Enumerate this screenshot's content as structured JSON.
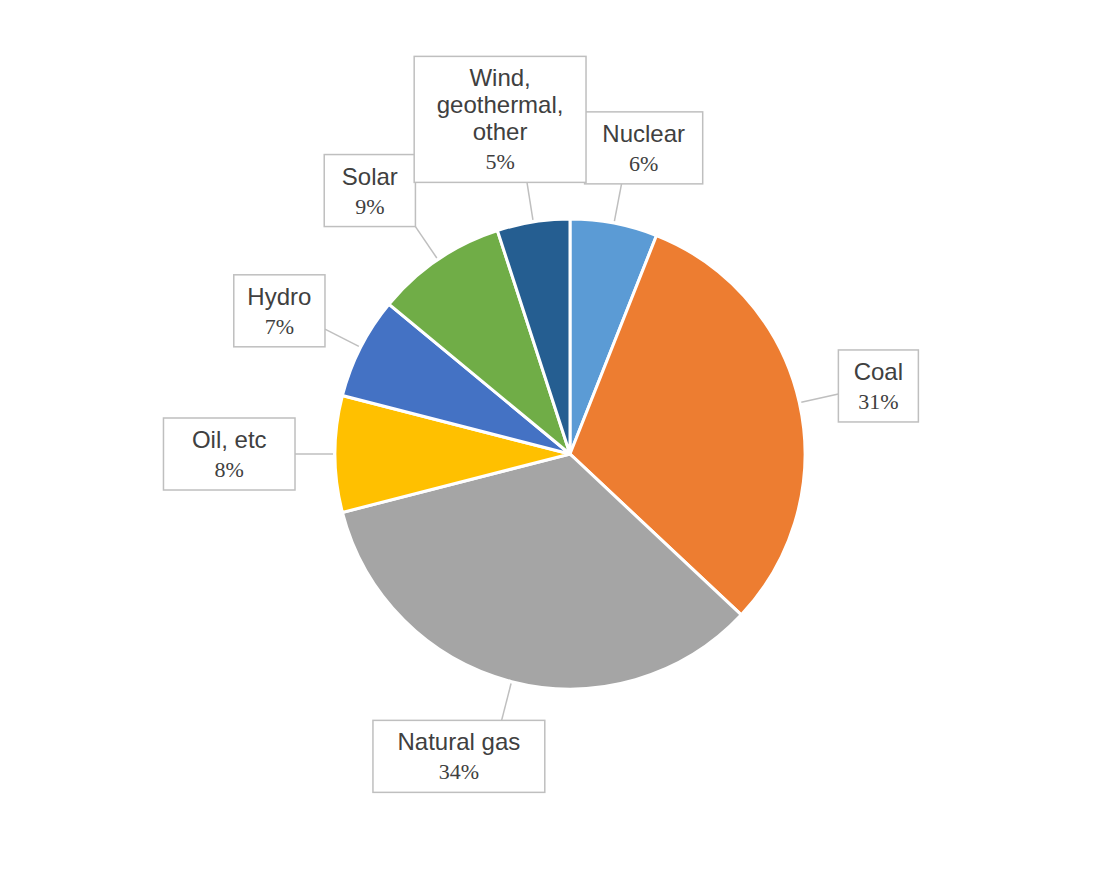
{
  "chart_data": {
    "type": "pie",
    "categories": [
      "Nuclear",
      "Coal",
      "Natural gas",
      "Oil, etc",
      "Hydro",
      "Solar",
      "Wind, geothermal, other"
    ],
    "values": [
      6,
      31,
      34,
      8,
      7,
      9,
      5
    ],
    "value_labels": [
      "6%",
      "31%",
      "34%",
      "8%",
      "7%",
      "9%",
      "5%"
    ],
    "colors": [
      "#5b9bd5",
      "#ed7d31",
      "#a5a5a5",
      "#ffc000",
      "#4472c4",
      "#70ad47",
      "#255e91"
    ],
    "data_labels": true
  }
}
